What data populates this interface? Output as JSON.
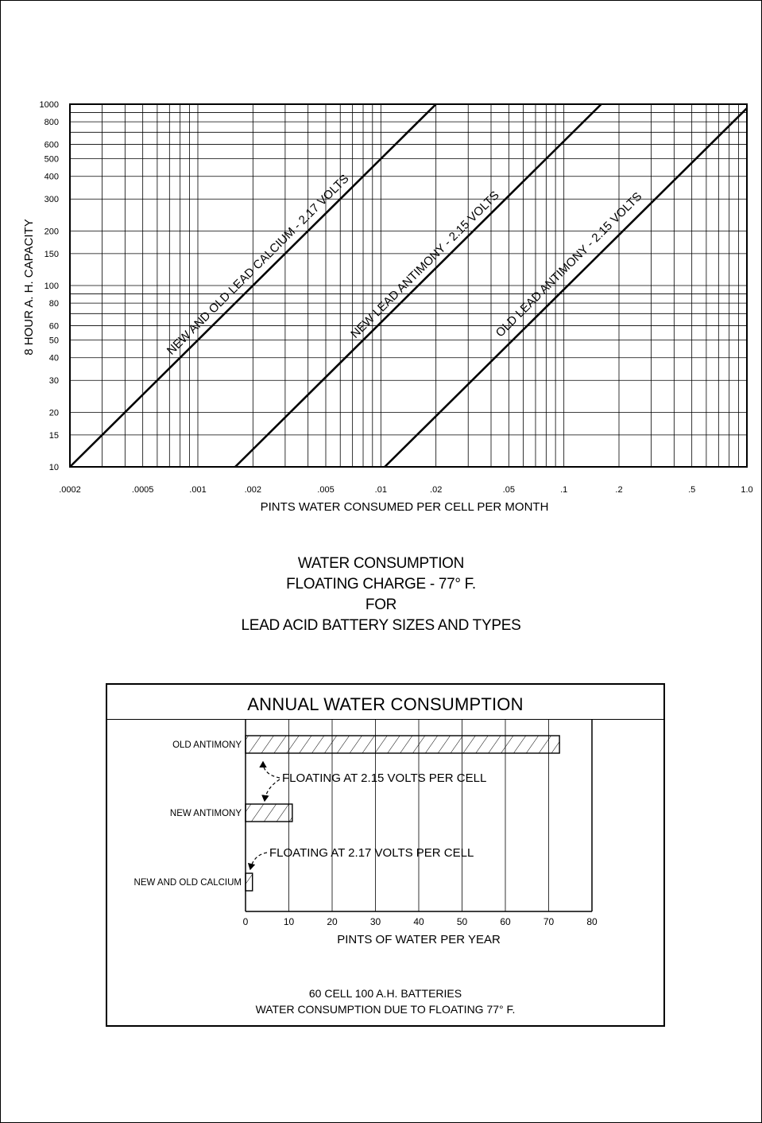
{
  "chart_data": [
    {
      "type": "line",
      "scale": {
        "x": "log",
        "y": "log"
      },
      "grid": true,
      "xlim": [
        0.0002,
        1.0
      ],
      "ylim": [
        10,
        1000
      ],
      "xlabel": "PINTS WATER CONSUMED PER CELL PER MONTH",
      "ylabel": "8 HOUR A. H. CAPACITY",
      "x_ticks": [
        {
          "label": ".0002",
          "value": 0.0002
        },
        {
          "label": ".0005",
          "value": 0.0005
        },
        {
          "label": ".001",
          "value": 0.001
        },
        {
          "label": ".002",
          "value": 0.002
        },
        {
          "label": ".005",
          "value": 0.005
        },
        {
          "label": ".01",
          "value": 0.01
        },
        {
          "label": ".02",
          "value": 0.02
        },
        {
          "label": ".05",
          "value": 0.05
        },
        {
          "label": ".1",
          "value": 0.1
        },
        {
          "label": ".2",
          "value": 0.2
        },
        {
          "label": ".5",
          "value": 0.5
        },
        {
          "label": "1.0",
          "value": 1.0
        }
      ],
      "y_ticks": [
        {
          "label": "10",
          "value": 10
        },
        {
          "label": "15",
          "value": 15
        },
        {
          "label": "20",
          "value": 20
        },
        {
          "label": "30",
          "value": 30
        },
        {
          "label": "40",
          "value": 40
        },
        {
          "label": "50",
          "value": 50
        },
        {
          "label": "60",
          "value": 60
        },
        {
          "label": "80",
          "value": 80
        },
        {
          "label": "100",
          "value": 100
        },
        {
          "label": "150",
          "value": 150
        },
        {
          "label": "200",
          "value": 200
        },
        {
          "label": "300",
          "value": 300
        },
        {
          "label": "400",
          "value": 400
        },
        {
          "label": "500",
          "value": 500
        },
        {
          "label": "600",
          "value": 600
        },
        {
          "label": "800",
          "value": 800
        },
        {
          "label": "1000",
          "value": 1000
        }
      ],
      "series": [
        {
          "name": "NEW AND OLD LEAD CALCIUM - 2.17 VOLTS",
          "x": [
            0.0002,
            0.02
          ],
          "y": [
            10,
            1000
          ]
        },
        {
          "name": "NEW LEAD ANTIMONY - 2.15 VOLTS",
          "x": [
            0.0016,
            0.16
          ],
          "y": [
            10,
            1000
          ]
        },
        {
          "name": "OLD LEAD ANTIMONY - 2.15 VOLTS",
          "x": [
            0.0105,
            1.0
          ],
          "y": [
            10,
            950
          ]
        }
      ]
    },
    {
      "type": "bar",
      "orientation": "horizontal",
      "title": "ANNUAL WATER CONSUMPTION",
      "xlabel": "PINTS OF WATER PER YEAR",
      "xlim": [
        0,
        80
      ],
      "x_ticks": [
        "0",
        "10",
        "20",
        "30",
        "40",
        "50",
        "60",
        "70",
        "80"
      ],
      "categories": [
        "OLD ANTIMONY",
        "NEW ANTIMONY",
        "NEW AND OLD CALCIUM"
      ],
      "values": [
        72.5,
        10.8,
        1.6
      ],
      "annotations": [
        "FLOATING AT 2.15 VOLTS PER CELL",
        "FLOATING AT 2.17 VOLTS PER CELL"
      ]
    }
  ],
  "caption": {
    "line1": "WATER CONSUMPTION",
    "line2": "FLOATING CHARGE - 77° F.",
    "line3": "FOR",
    "line4": "LEAD ACID BATTERY SIZES AND TYPES"
  },
  "bar_footer": {
    "line1": "60 CELL 100 A.H. BATTERIES",
    "line2": "WATER CONSUMPTION DUE TO FLOATING 77° F."
  },
  "colors": {
    "ink": "#000000",
    "paper": "#ffffff"
  }
}
